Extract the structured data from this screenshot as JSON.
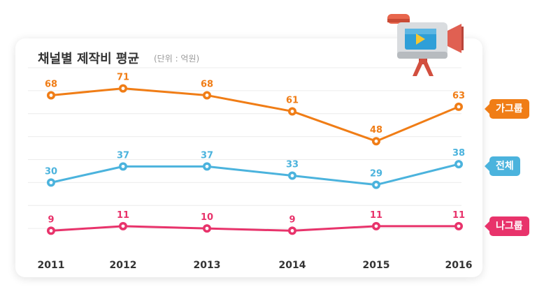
{
  "chart_data": {
    "type": "line",
    "title": "채널별 제작비 평균",
    "subtitle": "(단위 : 억원)",
    "categories": [
      "2011",
      "2012",
      "2013",
      "2014",
      "2015",
      "2016"
    ],
    "ylim": [
      0,
      80
    ],
    "grid": true,
    "series": [
      {
        "name": "가그룹",
        "color": "#f07d16",
        "values": [
          68,
          71,
          68,
          61,
          48,
          63
        ]
      },
      {
        "name": "전체",
        "color": "#4bb3dd",
        "values": [
          30,
          37,
          37,
          33,
          29,
          38
        ]
      },
      {
        "name": "나그룹",
        "color": "#e8336b",
        "values": [
          9,
          11,
          10,
          9,
          11,
          11
        ]
      }
    ]
  },
  "icons": {
    "decoration": "video-camera-icon"
  }
}
